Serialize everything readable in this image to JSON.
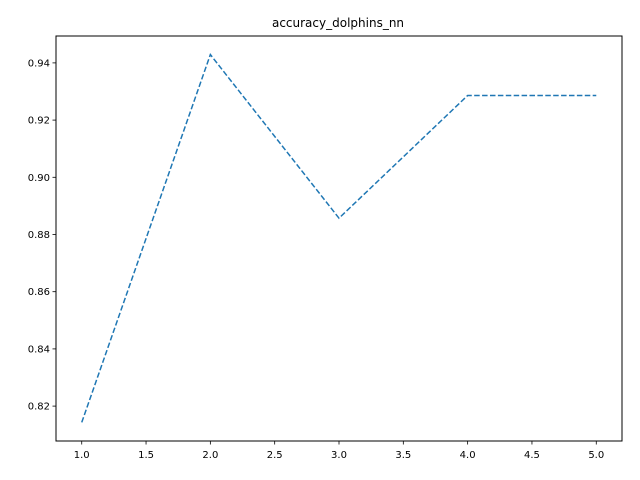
{
  "chart_data": {
    "type": "line",
    "title": "accuracy_dolphins_nn",
    "xlabel": "",
    "ylabel": "",
    "x": [
      1.0,
      2.0,
      3.0,
      4.0,
      5.0
    ],
    "series": [
      {
        "values": [
          0.8143,
          0.9429,
          0.8857,
          0.9286,
          0.9286
        ],
        "color": "#1f77b4",
        "line_style": "dashed"
      }
    ],
    "xlim": [
      0.8,
      5.2
    ],
    "ylim": [
      0.8078,
      0.9494
    ],
    "xticks": [
      1.0,
      1.5,
      2.0,
      2.5,
      3.0,
      3.5,
      4.0,
      4.5,
      5.0
    ],
    "xtick_labels": [
      "1.0",
      "1.5",
      "2.0",
      "2.5",
      "3.0",
      "3.5",
      "4.0",
      "4.5",
      "5.0"
    ],
    "yticks": [
      0.82,
      0.84,
      0.86,
      0.88,
      0.9,
      0.92,
      0.94
    ],
    "ytick_labels": [
      "0.82",
      "0.84",
      "0.86",
      "0.88",
      "0.90",
      "0.92",
      "0.94"
    ],
    "grid": false,
    "legend": false
  }
}
